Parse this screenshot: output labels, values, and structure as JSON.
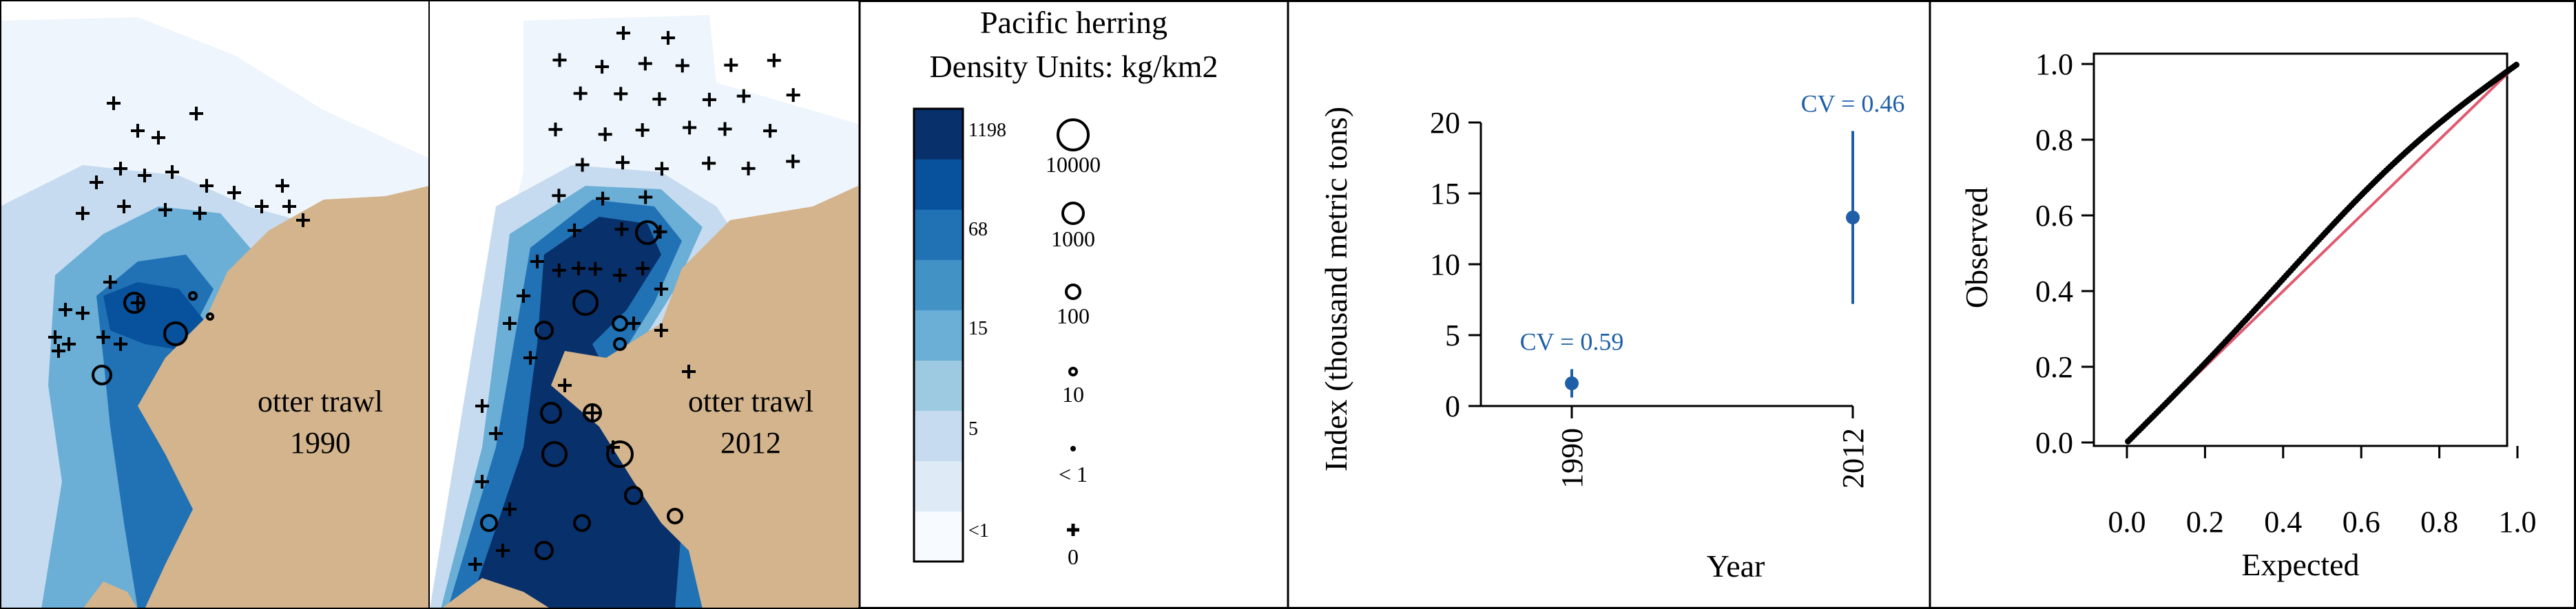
{
  "species": "Pacific herring",
  "density_units": "Density Units: kg/km2",
  "maps": [
    {
      "gear": "otter trawl",
      "year": "1990"
    },
    {
      "gear": "otter trawl",
      "year": "2012"
    }
  ],
  "colorbar": {
    "colors": [
      "#f7fbff",
      "#deebf7",
      "#c6dbef",
      "#9ecae1",
      "#6baed6",
      "#4292c6",
      "#2171b5",
      "#08519c",
      "#08306b"
    ],
    "labels": [
      "1198",
      "68",
      "15",
      "5",
      "<1"
    ]
  },
  "size_legend": [
    "10000",
    "1000",
    "100",
    "10",
    "< 1",
    "0"
  ],
  "colors": {
    "land": "#d3b48c",
    "sea_outer": "#eef5fc",
    "index_points": "#1f5fa8",
    "qq_reference": "#e05a70"
  },
  "chart_data": [
    {
      "type": "scatter",
      "xlabel": "Year",
      "ylabel": "Index (thousand metric tons)",
      "categories": [
        "1990",
        "2012"
      ],
      "values": [
        1.6,
        13.3
      ],
      "lower": [
        0.6,
        7.2
      ],
      "upper": [
        2.6,
        19.4
      ],
      "annotations": [
        "CV = 0.59",
        "CV = 0.46"
      ],
      "ylim": [
        0,
        20
      ],
      "yticks": [
        "0",
        "5",
        "10",
        "15",
        "20"
      ]
    },
    {
      "type": "scatter",
      "xlabel": "Expected",
      "ylabel": "Observed",
      "xlim": [
        0,
        1
      ],
      "ylim": [
        0,
        1
      ],
      "ticks": [
        "0.0",
        "0.2",
        "0.4",
        "0.6",
        "0.8",
        "1.0"
      ],
      "reference_line": [
        [
          0,
          0
        ],
        [
          1,
          1
        ]
      ]
    }
  ]
}
